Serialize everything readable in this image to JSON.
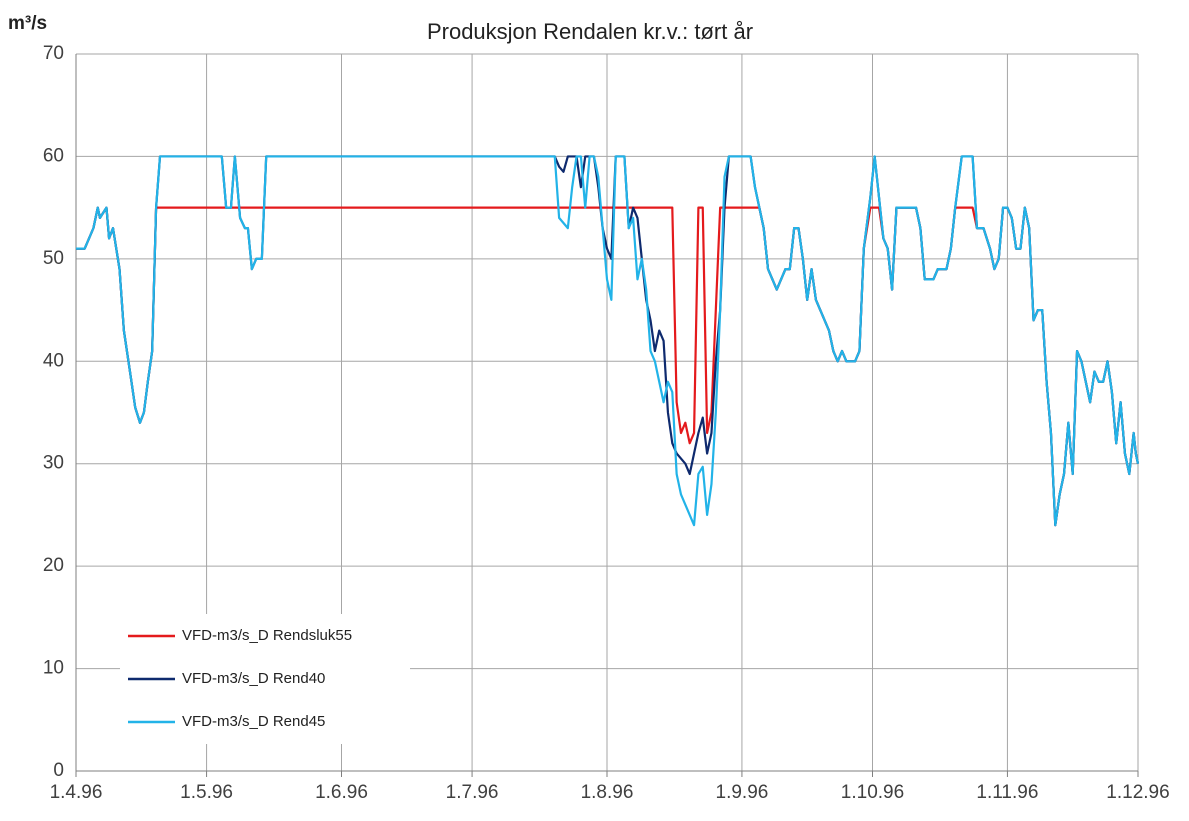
{
  "chart_data": {
    "type": "line",
    "title": "Produksjon Rendalen kr.v.: tørt år",
    "y_label": "m³/s",
    "x": [
      0,
      2,
      4,
      5,
      5.5,
      7,
      7.6,
      8.5,
      10,
      11,
      12.4,
      13.6,
      14.7,
      15.6,
      16.5,
      17.5,
      18.4,
      19.3,
      33.5,
      34.5,
      35.6,
      36.5,
      37.7,
      38.8,
      39.5,
      40.4,
      41.4,
      42.7,
      43.7,
      110,
      111,
      112,
      113,
      114,
      115,
      116,
      117,
      118,
      119,
      120,
      121,
      122,
      123,
      124,
      125,
      126,
      127,
      128,
      129,
      130,
      131,
      132,
      133,
      134,
      135,
      136,
      137,
      138,
      139,
      140,
      141,
      142,
      143,
      144,
      145,
      146,
      147,
      148,
      149,
      150,
      155,
      156,
      157,
      158,
      159,
      160,
      161,
      162,
      163,
      164,
      165,
      166,
      167,
      168,
      169,
      170,
      171,
      172,
      173,
      174,
      175,
      176,
      177,
      178,
      179,
      180,
      181,
      182.5,
      183.5,
      184.5,
      185.5,
      186.5,
      187.5,
      188.5,
      191,
      193,
      194,
      195,
      197,
      198,
      200,
      201,
      202,
      203.5,
      206,
      207,
      208.5,
      210,
      211,
      212,
      213,
      214,
      215,
      216,
      217,
      218,
      219,
      220,
      221,
      222,
      223,
      224,
      225,
      226,
      227,
      228,
      229,
      230,
      231,
      232,
      233,
      234,
      235,
      236,
      237,
      238,
      239,
      240,
      241,
      242,
      243,
      243.5,
      244
    ],
    "series": [
      {
        "name": "VFD-m3/s_D Rendsluk55",
        "color": "#e41a1c",
        "values": [
          51,
          51,
          53,
          55,
          54,
          55,
          52,
          53,
          49,
          43,
          39,
          35.5,
          34,
          35,
          38,
          41,
          55,
          55,
          55,
          55,
          55,
          55,
          55,
          55,
          55,
          55,
          55,
          55,
          55,
          55,
          55,
          55,
          55,
          55,
          55,
          55,
          55,
          55,
          55,
          55,
          55,
          55,
          55,
          55,
          55,
          55,
          55,
          55,
          55,
          55,
          55,
          55,
          55,
          55,
          55,
          55,
          55,
          36,
          33,
          34,
          32,
          33,
          55,
          55,
          33,
          35,
          45,
          55,
          55,
          55,
          55,
          55,
          55,
          53,
          49,
          48,
          47,
          48,
          49,
          49,
          53,
          53,
          50,
          46,
          49,
          46,
          45,
          44,
          43,
          41,
          40,
          41,
          40,
          40,
          40,
          41,
          51,
          55,
          55,
          55,
          52,
          51,
          47,
          55,
          55,
          55,
          53,
          48,
          48,
          49,
          49,
          51,
          55,
          55,
          55,
          53,
          53,
          51,
          49,
          50,
          55,
          55,
          54,
          51,
          51,
          55,
          53,
          44,
          45,
          45,
          38,
          33,
          24,
          27,
          29,
          34,
          29,
          41,
          40,
          38,
          36,
          39,
          38,
          38,
          40,
          37,
          32,
          36,
          31,
          29,
          33,
          31,
          30
        ]
      },
      {
        "name": "VFD-m3/s_D Rend40",
        "color": "#0e2a6e",
        "values": [
          51,
          51,
          53,
          55,
          54,
          55,
          52,
          53,
          49,
          43,
          39,
          35.5,
          34,
          35,
          38,
          41,
          55,
          60,
          60,
          55,
          55,
          60,
          54,
          53,
          53,
          49,
          50,
          50,
          60,
          60,
          59,
          58.5,
          60,
          60,
          60,
          57,
          60,
          60,
          60,
          57,
          53,
          51,
          50,
          60,
          60,
          60,
          53,
          55,
          54,
          50,
          46,
          44,
          41,
          43,
          42,
          35,
          32,
          31,
          30.5,
          30,
          29,
          31,
          33,
          34.5,
          31,
          33,
          40,
          45,
          55,
          60,
          60,
          57,
          55,
          53,
          49,
          48,
          47,
          48,
          49,
          49,
          53,
          53,
          50,
          46,
          49,
          46,
          45,
          44,
          43,
          41,
          40,
          41,
          40,
          40,
          40,
          41,
          51,
          56,
          60,
          56,
          52,
          51,
          47,
          55,
          55,
          55,
          53,
          48,
          48,
          49,
          49,
          51,
          55,
          60,
          60,
          53,
          53,
          51,
          49,
          50,
          55,
          55,
          54,
          51,
          51,
          55,
          53,
          44,
          45,
          45,
          38,
          33,
          24,
          27,
          29,
          34,
          29,
          41,
          40,
          38,
          36,
          39,
          38,
          38,
          40,
          37,
          32,
          36,
          31,
          29,
          33,
          31,
          30
        ]
      },
      {
        "name": "VFD-m3/s_D Rend45",
        "color": "#22b3e8",
        "values": [
          51,
          51,
          53,
          55,
          54,
          55,
          52,
          53,
          49,
          43,
          39,
          35.5,
          34,
          35,
          38,
          41,
          55,
          60,
          60,
          55,
          55,
          60,
          54,
          53,
          53,
          49,
          50,
          50,
          60,
          60,
          54,
          53.5,
          53,
          57,
          60,
          60,
          55,
          60,
          60,
          58,
          53,
          48,
          46,
          60,
          60,
          60,
          53,
          54,
          48,
          50,
          47,
          41,
          40,
          38,
          36,
          38,
          37,
          29,
          27,
          26,
          25,
          24,
          29,
          29.7,
          25,
          28,
          35,
          45,
          58,
          60,
          60,
          57,
          55,
          53,
          49,
          48,
          47,
          48,
          49,
          49,
          53,
          53,
          50,
          46,
          49,
          46,
          45,
          44,
          43,
          41,
          40,
          41,
          40,
          40,
          40,
          41,
          51,
          56,
          60,
          56,
          52,
          51,
          47,
          55,
          55,
          55,
          53,
          48,
          48,
          49,
          49,
          51,
          55,
          60,
          60,
          53,
          53,
          51,
          49,
          50,
          55,
          55,
          54,
          51,
          51,
          55,
          53,
          44,
          45,
          45,
          38,
          33,
          24,
          27,
          29,
          34,
          29,
          41,
          40,
          38,
          36,
          39,
          38,
          38,
          40,
          37,
          32,
          36,
          31,
          29,
          33,
          31,
          30
        ]
      }
    ],
    "xlim": [
      0,
      244
    ],
    "xticks": [
      {
        "value": 0,
        "label": "1.4.96"
      },
      {
        "value": 30,
        "label": "1.5.96"
      },
      {
        "value": 61,
        "label": "1.6.96"
      },
      {
        "value": 91,
        "label": "1.7.96"
      },
      {
        "value": 122,
        "label": "1.8.96"
      },
      {
        "value": 153,
        "label": "1.9.96"
      },
      {
        "value": 183,
        "label": "1.10.96"
      },
      {
        "value": 214,
        "label": "1.11.96"
      },
      {
        "value": 244,
        "label": "1.12.96"
      }
    ],
    "ylim": [
      0,
      70
    ],
    "yticks": [
      0,
      10,
      20,
      30,
      40,
      50,
      60,
      70
    ],
    "grid": true,
    "legend": "lower left"
  }
}
